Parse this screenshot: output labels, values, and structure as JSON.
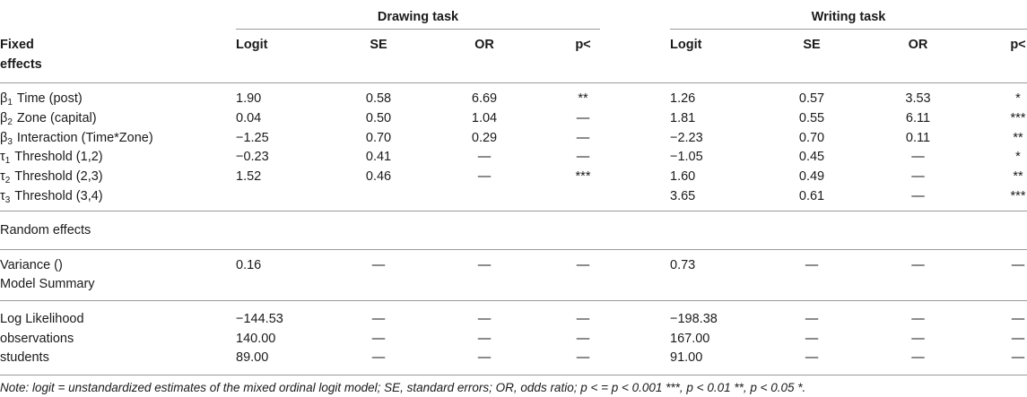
{
  "group_headers": {
    "drawing": "Drawing task",
    "writing": "Writing task"
  },
  "header": {
    "first_col": [
      "Fixed",
      "effects"
    ],
    "columns": [
      "Logit",
      "SE",
      "OR",
      "p<",
      "Logit",
      "SE",
      "OR",
      "p<"
    ]
  },
  "fixed_rows": [
    {
      "sym": "β",
      "sub": "1",
      "label": "Time (post)",
      "cells": [
        "1.90",
        "0.58",
        "6.69",
        "**",
        "1.26",
        "0.57",
        "3.53",
        "*"
      ]
    },
    {
      "sym": "β",
      "sub": "2",
      "label": "Zone (capital)",
      "cells": [
        "0.04",
        "0.50",
        "1.04",
        "—",
        "1.81",
        "0.55",
        "6.11",
        "***"
      ]
    },
    {
      "sym": "β",
      "sub": "3",
      "label": "Interaction (Time*Zone)",
      "cells": [
        "−1.25",
        "0.70",
        "0.29",
        "—",
        "−2.23",
        "0.70",
        "0.11",
        "**"
      ]
    },
    {
      "sym": "τ",
      "sub": "1",
      "label": "Threshold (1,2)",
      "cells": [
        "−0.23",
        "0.41",
        "—",
        "—",
        "−1.05",
        "0.45",
        "—",
        "*"
      ]
    },
    {
      "sym": "τ",
      "sub": "2",
      "label": "Threshold (2,3)",
      "cells": [
        "1.52",
        "0.46",
        "—",
        "***",
        "1.60",
        "0.49",
        "—",
        "**"
      ]
    },
    {
      "sym": "τ",
      "sub": "3",
      "label": "Threshold (3,4)",
      "cells": [
        "",
        "",
        "",
        "",
        "3.65",
        "0.61",
        "—",
        "***"
      ]
    }
  ],
  "random_label": "Random effects",
  "variance_row": {
    "label": "Variance ()",
    "cells": [
      "0.16",
      "—",
      "—",
      "—",
      "0.73",
      "—",
      "—",
      "—"
    ]
  },
  "model_summary_label": "Model Summary",
  "summary_rows": [
    {
      "label": "Log Likelihood",
      "cells": [
        "−144.53",
        "—",
        "—",
        "—",
        "−198.38",
        "—",
        "—",
        "—"
      ]
    },
    {
      "label": "observations",
      "cells": [
        "140.00",
        "—",
        "—",
        "—",
        "167.00",
        "—",
        "—",
        "—"
      ]
    },
    {
      "label": "students",
      "cells": [
        "89.00",
        "—",
        "—",
        "—",
        "91.00",
        "—",
        "—",
        "—"
      ]
    }
  ],
  "note": "Note: logit = unstandardized estimates of the mixed ordinal logit model; SE, standard errors; OR, odds ratio; p < = p < 0.001 ***, p < 0.01 **, p < 0.05 *."
}
